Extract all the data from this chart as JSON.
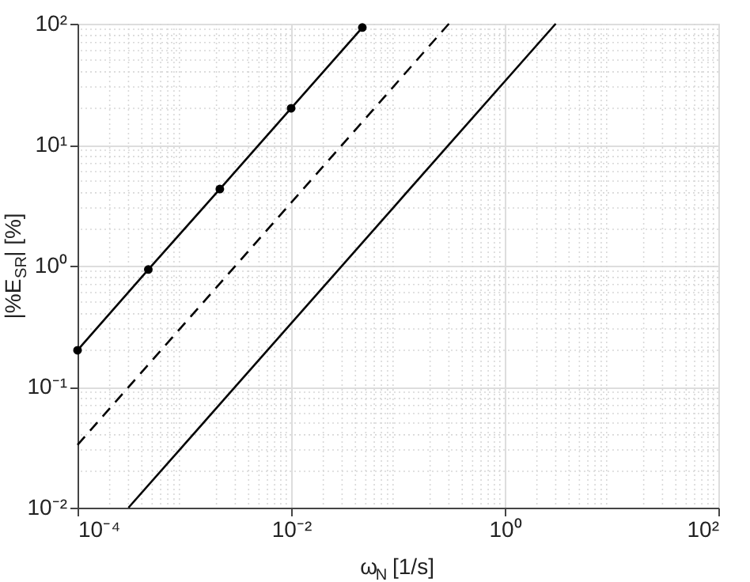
{
  "chart_data": {
    "type": "line",
    "xlabel": "ω$_{N}$ [1/s]",
    "ylabel": "|%E$_{SR}$| [%]",
    "series": [
      {
        "color": "#000000",
        "line_style": "solid",
        "marker": "circle",
        "x": [
          0.0001,
          0.00046,
          0.00215,
          0.01,
          0.0464
        ],
        "values": [
          0.2,
          0.93,
          4.3,
          20,
          93
        ]
      },
      {
        "color": "#000000",
        "line_style": "dashed",
        "marker": "none",
        "x": [
          0.0001,
          0.3
        ],
        "values": [
          0.033,
          100
        ]
      },
      {
        "color": "#000000",
        "line_style": "solid",
        "marker": "none",
        "x": [
          0.0003,
          3
        ],
        "values": [
          0.01,
          100
        ]
      }
    ],
    "log": "xy",
    "grid": true,
    "xlim": [
      0.0001,
      100
    ],
    "ylim": [
      0.01,
      100
    ],
    "xticks": [
      {
        "value": 0.0001,
        "label": "10⁻⁴"
      },
      {
        "value": 0.01,
        "label": "10⁻²"
      },
      {
        "value": 1,
        "label": "10⁰"
      },
      {
        "value": 100,
        "label": "10²"
      }
    ],
    "yticks": [
      {
        "value": 0.01,
        "label": "10⁻²"
      },
      {
        "value": 0.1,
        "label": "10⁻¹"
      },
      {
        "value": 1,
        "label": "10⁰"
      },
      {
        "value": 10,
        "label": "10¹"
      },
      {
        "value": 100,
        "label": "10²"
      }
    ]
  }
}
